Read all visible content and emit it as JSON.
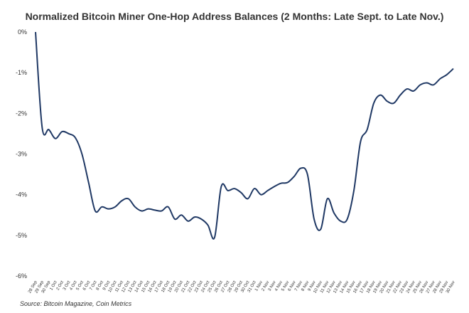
{
  "chart_data": {
    "type": "line",
    "title": "Normalized Bitcoin Miner One-Hop Address Balances (2 Months: Late Sept. to Late Nov.)",
    "source": "Source: Bitcoin Magazine, Coin Metrics",
    "categories": [
      "28 Sep",
      "29 Sep",
      "30 Sep",
      "1 Oct",
      "2 Oct",
      "3 Oct",
      "4 Oct",
      "5 Oct",
      "6 Oct",
      "7 Oct",
      "8 Oct",
      "9 Oct",
      "10 Oct",
      "11 Oct",
      "12 Oct",
      "13 Oct",
      "14 Oct",
      "15 Oct",
      "16 Oct",
      "17 Oct",
      "18 Oct",
      "19 Oct",
      "20 Oct",
      "21 Oct",
      "22 Oct",
      "23 Oct",
      "24 Oct",
      "25 Oct",
      "26 Oct",
      "27 Oct",
      "28 Oct",
      "29 Oct",
      "30 Oct",
      "31 Oct",
      "1 Nov",
      "2 Nov",
      "3 Nov",
      "4 Nov",
      "5 Nov",
      "6 Nov",
      "7 Nov",
      "8 Nov",
      "9 Nov",
      "10 Nov",
      "11 Nov",
      "12 Nov",
      "13 Nov",
      "14 Nov",
      "15 Nov",
      "16 Nov",
      "17 Nov",
      "18 Nov",
      "19 Nov",
      "20 Nov",
      "21 Nov",
      "22 Nov",
      "23 Nov",
      "24 Nov",
      "25 Nov",
      "26 Nov",
      "27 Nov",
      "28 Nov",
      "29 Nov",
      "30 Nov"
    ],
    "series": [
      {
        "name": "Normalized balance",
        "color": "#1f3864",
        "values": [
          0,
          -2.35,
          -2.4,
          -2.62,
          -2.45,
          -2.5,
          -2.6,
          -3.0,
          -3.7,
          -4.4,
          -4.3,
          -4.35,
          -4.3,
          -4.15,
          -4.1,
          -4.3,
          -4.4,
          -4.35,
          -4.38,
          -4.4,
          -4.3,
          -4.6,
          -4.5,
          -4.65,
          -4.55,
          -4.6,
          -4.75,
          -5.05,
          -3.8,
          -3.9,
          -3.85,
          -3.95,
          -4.1,
          -3.85,
          -4.0,
          -3.9,
          -3.8,
          -3.72,
          -3.7,
          -3.55,
          -3.35,
          -3.5,
          -4.6,
          -4.85,
          -4.1,
          -4.45,
          -4.65,
          -4.6,
          -3.9,
          -2.7,
          -2.4,
          -1.75,
          -1.55,
          -1.7,
          -1.75,
          -1.55,
          -1.4,
          -1.45,
          -1.3,
          -1.25,
          -1.3,
          -1.15,
          -1.05,
          -0.9
        ]
      }
    ],
    "ylim": [
      -6,
      0
    ],
    "yticks": [
      {
        "value": 0,
        "label": "0%"
      },
      {
        "value": -1,
        "label": "-1%"
      },
      {
        "value": -2,
        "label": "-2%"
      },
      {
        "value": -3,
        "label": "-3%"
      },
      {
        "value": -4,
        "label": "-4%"
      },
      {
        "value": -5,
        "label": "-5%"
      },
      {
        "value": -6,
        "label": "-6%"
      }
    ],
    "grid": false
  }
}
